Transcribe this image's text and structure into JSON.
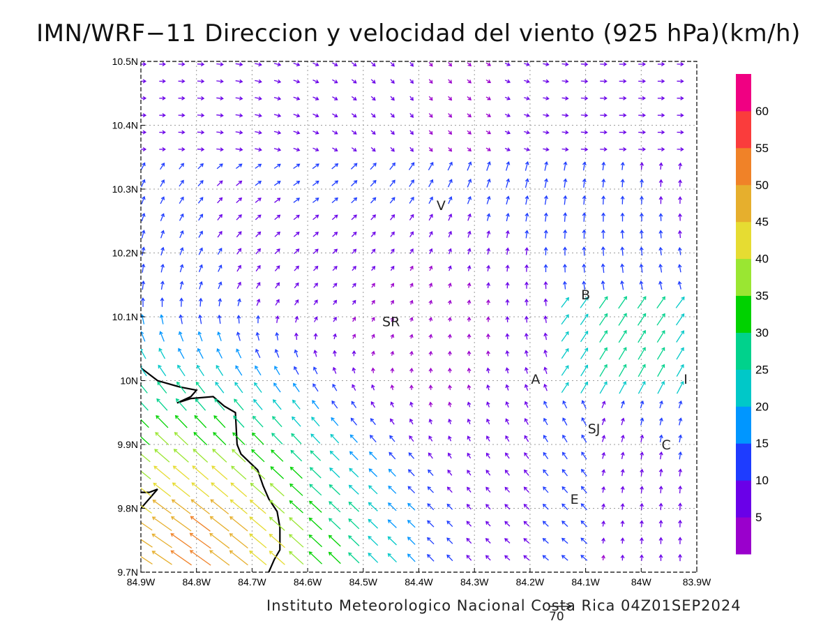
{
  "title": "IMN/WRF−11 Direccion y velocidad del viento (925 hPa)(km/h)",
  "footer": "Instituto Meteorologico Nacional Costa Rica 04Z01SEP2024",
  "reference_vector_label": "70",
  "colors": {
    "background": "#ffffff",
    "frame": "#000000",
    "grid": "#9a9a9a",
    "coastline": "#000000"
  },
  "colorbar": {
    "levels": [
      "5",
      "10",
      "15",
      "20",
      "25",
      "30",
      "35",
      "40",
      "45",
      "50",
      "55",
      "60"
    ],
    "colors": [
      "#9a00cc",
      "#6a00e8",
      "#1e3cff",
      "#0096ff",
      "#00c8c8",
      "#00d28c",
      "#00d200",
      "#9ae632",
      "#e6dc32",
      "#e6af2d",
      "#f08228",
      "#fa3c3c",
      "#f00082"
    ]
  },
  "cities": [
    {
      "label": "V",
      "lon": -84.36,
      "lat": 10.275
    },
    {
      "label": "B",
      "lon": -84.1,
      "lat": 10.135
    },
    {
      "label": "SR",
      "lon": -84.45,
      "lat": 10.093
    },
    {
      "label": "A",
      "lon": -84.19,
      "lat": 10.003
    },
    {
      "label": "I",
      "lon": -83.92,
      "lat": 10.003
    },
    {
      "label": "SJ",
      "lon": -84.085,
      "lat": 9.925
    },
    {
      "label": "C",
      "lon": -83.955,
      "lat": 9.9
    },
    {
      "label": "E",
      "lon": -84.12,
      "lat": 9.815
    }
  ],
  "chart_data": {
    "type": "wind-vector map",
    "xlim": [
      -84.9,
      -83.9
    ],
    "ylim": [
      9.7,
      10.5
    ],
    "x_ticks": [
      "84.9W",
      "84.8W",
      "84.7W",
      "84.6W",
      "84.5W",
      "84.4W",
      "84.3W",
      "84.2W",
      "84.1W",
      "84W",
      "83.9W"
    ],
    "y_ticks": [
      "9.7N",
      "9.8N",
      "9.9N",
      "10N",
      "10.1N",
      "10.2N",
      "10.3N",
      "10.4N",
      "10.5N"
    ],
    "grid": true,
    "units": "km/h",
    "coastline": [
      [
        [
          -84.9,
          10.02
        ],
        [
          -84.87,
          10.0
        ],
        [
          -84.83,
          9.99
        ],
        [
          -84.8,
          9.985
        ],
        [
          -84.81,
          9.975
        ],
        [
          -84.835,
          9.965
        ],
        [
          -84.81,
          9.972
        ],
        [
          -84.77,
          9.975
        ],
        [
          -84.75,
          9.96
        ],
        [
          -84.73,
          9.95
        ],
        [
          -84.727,
          9.9
        ],
        [
          -84.72,
          9.885
        ],
        [
          -84.69,
          9.86
        ],
        [
          -84.68,
          9.835
        ],
        [
          -84.67,
          9.815
        ],
        [
          -84.655,
          9.795
        ],
        [
          -84.65,
          9.77
        ],
        [
          -84.65,
          9.735
        ],
        [
          -84.66,
          9.72
        ],
        [
          -84.67,
          9.7
        ]
      ],
      [
        [
          -84.9,
          9.8
        ],
        [
          -84.885,
          9.815
        ],
        [
          -84.87,
          9.83
        ],
        [
          -84.885,
          9.825
        ],
        [
          -84.9,
          9.825
        ]
      ]
    ]
  }
}
